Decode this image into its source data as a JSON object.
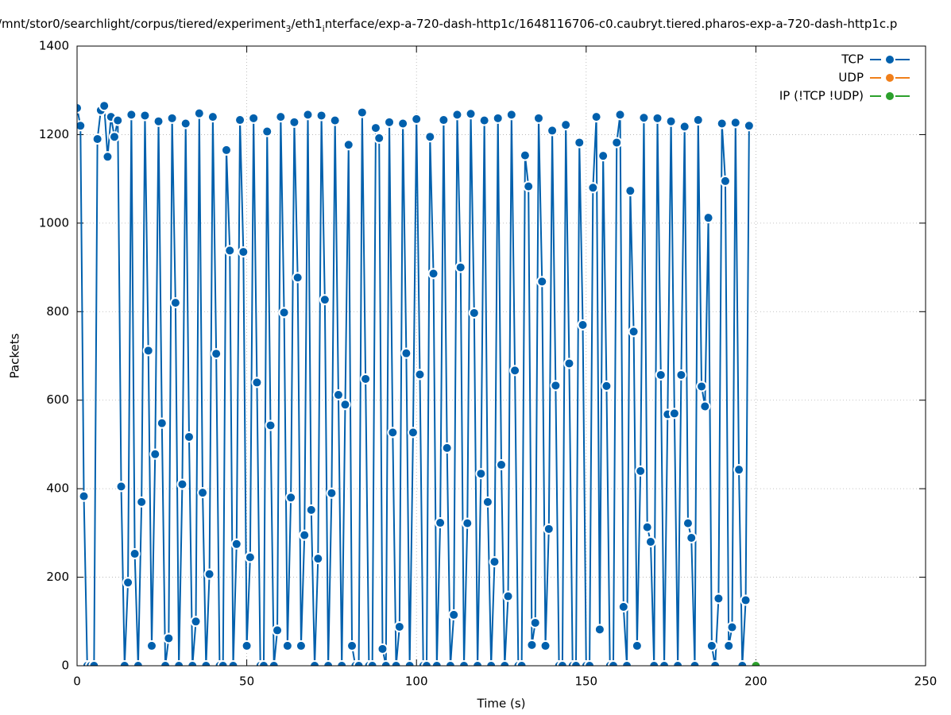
{
  "chart_data": {
    "type": "line",
    "title_parts": [
      {
        "text": "/mnt/stor0/searchlight/corpus/tiered/experiment",
        "sub": false
      },
      {
        "text": "3",
        "sub": true
      },
      {
        "text": "/eth1",
        "sub": false
      },
      {
        "text": "i",
        "sub": true
      },
      {
        "text": "nterface/exp-a-720-dash-http1c/1648116706-c0.caubryt.tiered.pharos-exp-a-720-dash-http1c.p",
        "sub": false
      }
    ],
    "xlabel": "Time (s)",
    "ylabel": "Packets",
    "xlim": [
      0,
      250
    ],
    "ylim": [
      0,
      1400
    ],
    "xticks": [
      0,
      50,
      100,
      150,
      200,
      250
    ],
    "yticks": [
      0,
      200,
      400,
      600,
      800,
      1000,
      1200,
      1400
    ],
    "grid": true,
    "legend": "top-right",
    "series": [
      {
        "name": "TCP",
        "color": "#0060ad",
        "x": [
          0,
          1,
          2,
          3,
          4,
          5,
          6,
          7,
          8,
          9,
          10,
          11,
          12,
          13,
          14,
          15,
          16,
          17,
          18,
          19,
          20,
          21,
          22,
          23,
          24,
          25,
          26,
          27,
          28,
          29,
          30,
          31,
          32,
          33,
          34,
          35,
          36,
          37,
          38,
          39,
          40,
          41,
          42,
          43,
          44,
          45,
          46,
          47,
          48,
          49,
          50,
          51,
          52,
          53,
          54,
          55,
          56,
          57,
          58,
          59,
          60,
          61,
          62,
          63,
          64,
          65,
          66,
          67,
          68,
          69,
          70,
          71,
          72,
          73,
          74,
          75,
          76,
          77,
          78,
          79,
          80,
          81,
          82,
          83,
          84,
          85,
          86,
          87,
          88,
          89,
          90,
          91,
          92,
          93,
          94,
          95,
          96,
          97,
          98,
          99,
          100,
          101,
          102,
          103,
          104,
          105,
          106,
          107,
          108,
          109,
          110,
          111,
          112,
          113,
          114,
          115,
          116,
          117,
          118,
          119,
          120,
          121,
          122,
          123,
          124,
          125,
          126,
          127,
          128,
          129,
          130,
          131,
          132,
          133,
          134,
          135,
          136,
          137,
          138,
          139,
          140,
          141,
          142,
          143,
          144,
          145,
          146,
          147,
          148,
          149,
          150,
          151,
          152,
          153,
          154,
          155,
          156,
          157,
          158,
          159,
          160,
          161,
          162,
          163,
          164,
          165,
          166,
          167,
          168,
          169,
          170,
          171,
          172,
          173,
          174,
          175,
          176,
          177,
          178,
          179,
          180,
          181,
          182,
          183,
          184,
          185,
          186,
          187,
          188,
          189,
          190,
          191,
          192,
          193,
          194,
          195,
          196,
          197,
          198
        ],
        "values": [
          1260,
          1220,
          383,
          0,
          0,
          0,
          1190,
          1255,
          1265,
          1150,
          1240,
          1195,
          1232,
          405,
          0,
          188,
          1245,
          253,
          0,
          370,
          1243,
          712,
          45,
          478,
          1230,
          548,
          0,
          62,
          1237,
          820,
          0,
          410,
          1225,
          517,
          0,
          100,
          1248,
          391,
          0,
          207,
          1240,
          705,
          0,
          0,
          1165,
          938,
          0,
          275,
          1233,
          935,
          45,
          245,
          1237,
          640,
          0,
          0,
          1207,
          543,
          0,
          80,
          1240,
          798,
          45,
          380,
          1228,
          877,
          45,
          295,
          1245,
          352,
          0,
          242,
          1243,
          827,
          0,
          390,
          1232,
          612,
          0,
          590,
          1177,
          45,
          0,
          0,
          1250,
          648,
          0,
          0,
          1215,
          1192,
          38,
          0,
          1228,
          527,
          0,
          88,
          1225,
          706,
          0,
          527,
          1235,
          658,
          0,
          0,
          1195,
          886,
          0,
          323,
          1233,
          492,
          0,
          115,
          1245,
          900,
          0,
          322,
          1247,
          797,
          0,
          434,
          1232,
          370,
          0,
          235,
          1237,
          454,
          0,
          157,
          1245,
          667,
          0,
          0,
          1153,
          1083,
          47,
          97,
          1237,
          868,
          45,
          309,
          1209,
          633,
          0,
          0,
          1222,
          683,
          0,
          0,
          1182,
          770,
          0,
          0,
          1080,
          1240,
          82,
          1152,
          632,
          0,
          0,
          1182,
          1245,
          133,
          0,
          1073,
          755,
          45,
          440,
          1238,
          313,
          280,
          0,
          1237,
          657,
          0,
          568,
          1230,
          570,
          0,
          657,
          1218,
          322,
          289,
          0,
          1233,
          631,
          586,
          1012,
          45,
          0,
          152,
          1225,
          1095,
          45,
          87,
          1227,
          443,
          0,
          148,
          1220
        ]
      },
      {
        "name": "UDP",
        "color": "#f07f1a",
        "x": [],
        "values": []
      },
      {
        "name": "IP (!TCP  !UDP)",
        "color": "#2ca02c",
        "x": [
          200
        ],
        "values": [
          0
        ]
      }
    ]
  }
}
